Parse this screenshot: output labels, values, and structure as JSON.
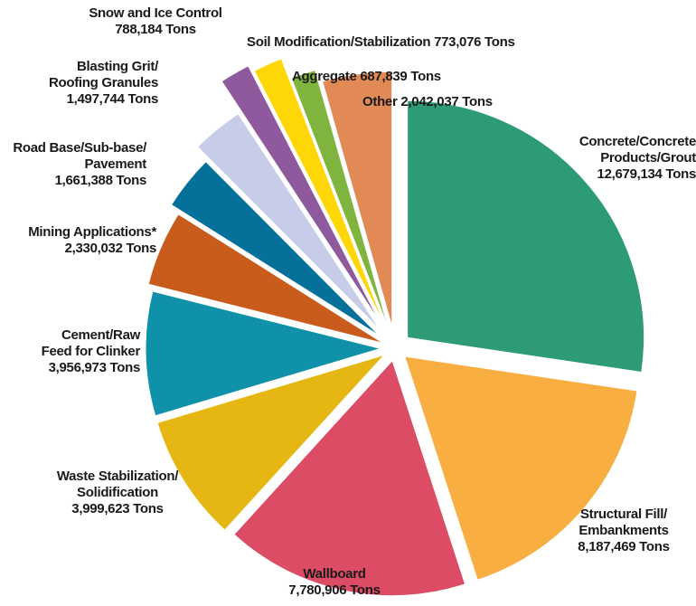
{
  "chart_data": {
    "type": "pie",
    "unit": "Tons",
    "slices": [
      {
        "label_lines": [
          "Concrete/Concrete",
          "Products/Grout"
        ],
        "value_text": "12,679,134 Tons",
        "value": 12679134,
        "color": "#2e9b77"
      },
      {
        "label_lines": [
          "Structural Fill/",
          "Embankments"
        ],
        "value_text": "8,187,469 Tons",
        "value": 8187469,
        "color": "#f8ae40"
      },
      {
        "label_lines": [
          "Wallboard"
        ],
        "value_text": "7,780,906 Tons",
        "value": 7780906,
        "color": "#dc4c65"
      },
      {
        "label_lines": [
          "Waste Stabilization/",
          "Solidification"
        ],
        "value_text": "3,999,623 Tons",
        "value": 3999623,
        "color": "#e6b712"
      },
      {
        "label_lines": [
          "Cement/Raw",
          "Feed for Clinker"
        ],
        "value_text": "3,956,973 Tons",
        "value": 3956973,
        "color": "#0e91a9"
      },
      {
        "label_lines": [
          "Mining Applications*"
        ],
        "value_text": "2,330,032 Tons",
        "value": 2330032,
        "color": "#c95c1d"
      },
      {
        "label_lines": [
          "Road Base/Sub-base/",
          "Pavement"
        ],
        "value_text": "1,661,388 Tons",
        "value": 1661388,
        "color": "#05709a"
      },
      {
        "label_lines": [
          "Blasting Grit/",
          "Roofing Granules"
        ],
        "value_text": "1,497,744 Tons",
        "value": 1497744,
        "color": "#c7cde9"
      },
      {
        "label_lines": [
          "Snow and Ice Control"
        ],
        "value_text": "788,184 Tons",
        "value": 788184,
        "color": "#8e5a9d"
      },
      {
        "label_lines": [
          "Soil Modification/Stabilization 773,076 Tons"
        ],
        "value_text": "",
        "value": 773076,
        "color": "#ffd707"
      },
      {
        "label_lines": [
          "Aggregate  687,839 Tons"
        ],
        "value_text": "",
        "value": 687839,
        "color": "#7fb43e"
      },
      {
        "label_lines": [
          "Other  2,042,037 Tons"
        ],
        "value_text": "",
        "value": 2042037,
        "color": "#e18a56"
      }
    ]
  }
}
